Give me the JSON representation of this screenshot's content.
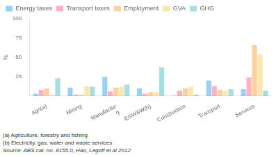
{
  "chart_data": {
    "type": "bar",
    "categories": [
      "Agri(a)",
      "Mining",
      "Manufactur\ng",
      "EGW&W(b)",
      "Construction",
      "Transport",
      "Services"
    ],
    "series": [
      {
        "name": "Energy taxes",
        "values": [
          3,
          11,
          25,
          10,
          0.5,
          20,
          9
        ]
      },
      {
        "name": "Transport taxes",
        "values": [
          8,
          2,
          6,
          3,
          7,
          13,
          24
        ]
      },
      {
        "name": "Employment",
        "values": [
          10,
          2,
          11,
          5,
          10,
          8,
          66
        ]
      },
      {
        "name": "GVA",
        "values": [
          2,
          13,
          12,
          5,
          12,
          7,
          54
        ]
      },
      {
        "name": "GHG",
        "values": [
          23,
          12,
          15,
          37,
          2,
          9,
          7
        ]
      }
    ],
    "ylabel": "%",
    "ylim": [
      0,
      100
    ],
    "yticks": [
      25,
      50,
      75,
      100
    ],
    "grid": false,
    "legend": "upper left",
    "annotations": [
      "(a) Agriculture, forestry and fishing",
      "(b) Electricity, gas, water and waste services",
      "Source: ABS cat.  no. 8155.0, Hao, Legoff et al 2012"
    ]
  }
}
